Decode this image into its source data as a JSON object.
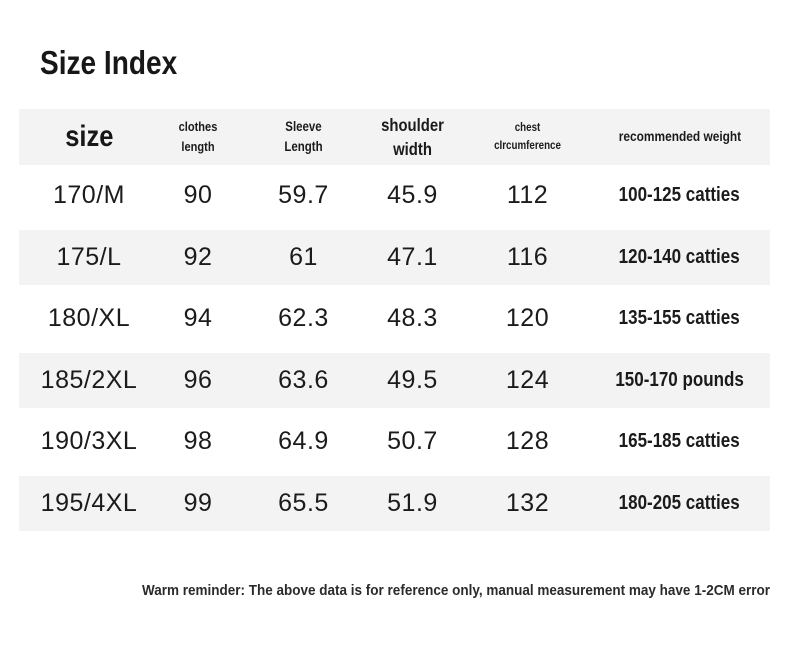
{
  "page": {
    "title": "Size Index",
    "footer_note": "Warm reminder: The above data is for reference only, manual measurement may have 1-2CM error"
  },
  "header": {
    "size": {
      "line1": "size"
    },
    "clothes_length": {
      "line1": "clothes",
      "line2": "length"
    },
    "sleeve_length": {
      "line1": "Sleeve",
      "line2": "Length"
    },
    "shoulder_width": {
      "line1": "shoulder",
      "line2": "width"
    },
    "chest_circumference": {
      "line1": "chest",
      "line2": "cIrcumference"
    },
    "recommended_weight": {
      "line1": "recommended weight"
    }
  },
  "chart_data": {
    "type": "table",
    "title": "Size Index",
    "columns": [
      "size",
      "clothes length",
      "Sleeve Length",
      "shoulder width",
      "chest cIrcumference",
      "recommended weight"
    ],
    "rows": [
      [
        "170/M",
        "90",
        "59.7",
        "45.9",
        "112",
        "100-125 catties"
      ],
      [
        "175/L",
        "92",
        "61",
        "47.1",
        "116",
        "120-140 catties"
      ],
      [
        "180/XL",
        "94",
        "62.3",
        "48.3",
        "120",
        "135-155 catties"
      ],
      [
        "185/2XL",
        "96",
        "63.6",
        "49.5",
        "124",
        "150-170 pounds"
      ],
      [
        "190/3XL",
        "98",
        "64.9",
        "50.7",
        "128",
        "165-185 catties"
      ],
      [
        "195/4XL",
        "99",
        "65.5",
        "51.9",
        "132",
        "180-205 catties"
      ]
    ],
    "note": "Warm reminder: The above data is for reference only, manual measurement may have 1-2CM error",
    "layout": {
      "striped_row_indexes": [
        1,
        3,
        5
      ],
      "grid_lines": false,
      "stripe_color": "#f3f3f3"
    }
  },
  "colors": {
    "stripe": "#f3f3f3",
    "text": "#1b1b1b"
  }
}
